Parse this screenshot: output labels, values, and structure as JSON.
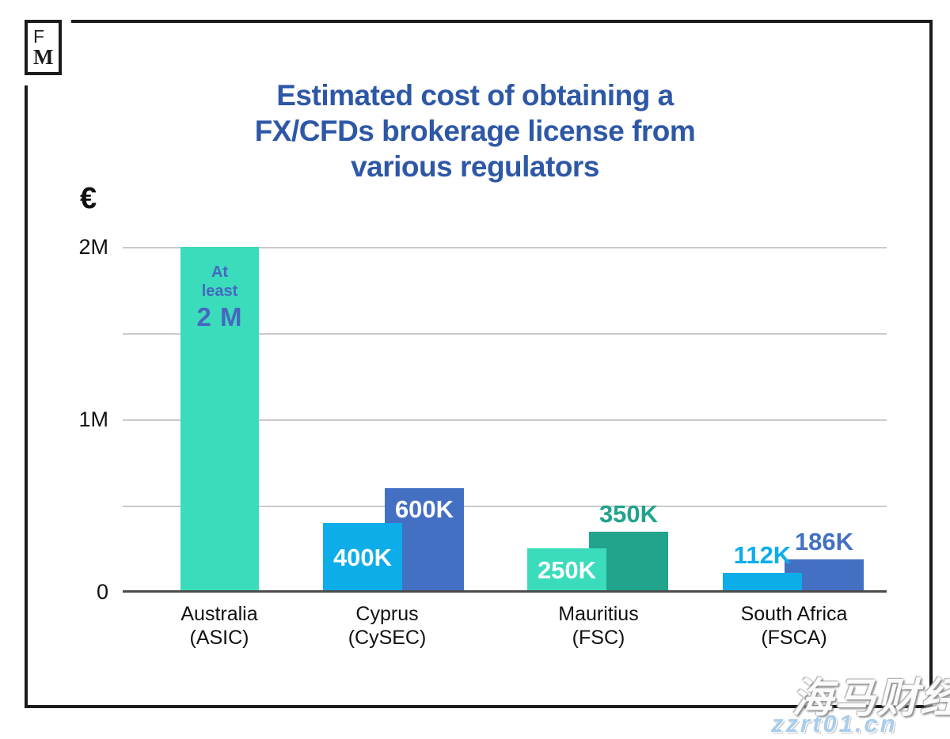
{
  "branding": {
    "logo_letter_top": "F",
    "logo_letter_bottom": "M"
  },
  "title": {
    "lines": [
      "Estimated cost of obtaining a",
      "FX/CFDs brokerage license from",
      "various regulators"
    ],
    "color": "#2e58a6"
  },
  "watermark": {
    "line1": "海马财经",
    "line2": "zzrt01.cn",
    "url_color": "#a9cdec"
  },
  "chart_data": {
    "type": "bar",
    "title": "Estimated cost of obtaining a FX/CFDs brokerage license from various regulators",
    "ylabel": "€",
    "xlabel": "",
    "ylim": [
      0,
      2000000
    ],
    "grid": true,
    "gridline_interval": 500000,
    "yticks": [
      {
        "value": 0,
        "label": "0"
      },
      {
        "value": 1000000,
        "label": "1M"
      },
      {
        "value": 2000000,
        "label": "2M"
      }
    ],
    "categories": [
      "Australia (ASIC)",
      "Cyprus (CySEC)",
      "Mauritius (FSC)",
      "South Africa (FSCA)"
    ],
    "groups": [
      {
        "key": "australia",
        "category_line1": "Australia",
        "category_line2": "(ASIC)",
        "bars": [
          {
            "value": 2000000,
            "label": "2 M",
            "annotation": "At least",
            "color": "#3adcbc",
            "label_style": "annotated"
          }
        ]
      },
      {
        "key": "cyprus",
        "category_line1": "Cyprus",
        "category_line2": "(CySEC)",
        "bars": [
          {
            "value": 400000,
            "label": "400K",
            "color": "#0cade9",
            "label_style": "inside-center"
          },
          {
            "value": 600000,
            "label": "600K",
            "color": "#4470c4",
            "label_style": "inside-top"
          }
        ]
      },
      {
        "key": "mauritius",
        "category_line1": "Mauritius",
        "category_line2": "(FSC)",
        "bars": [
          {
            "value": 250000,
            "label": "250K",
            "color": "#3adcbc",
            "label_style": "inside-center"
          },
          {
            "value": 350000,
            "label": "350K",
            "color": "#21a38c",
            "label_style": "above"
          }
        ]
      },
      {
        "key": "south-africa",
        "category_line1": "South Africa",
        "category_line2": "(FSCA)",
        "bars": [
          {
            "value": 112000,
            "label": "112K",
            "color": "#0cade9",
            "label_style": "above"
          },
          {
            "value": 186000,
            "label": "186K",
            "color": "#4470c4",
            "label_style": "above"
          }
        ]
      }
    ]
  }
}
